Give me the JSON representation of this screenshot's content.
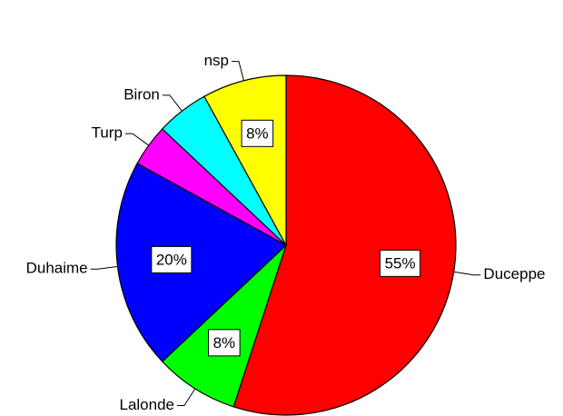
{
  "chart_data": {
    "type": "pie",
    "categories": [
      "Duceppe",
      "Lalonde",
      "Duhaime",
      "Turp",
      "Biron",
      "nsp"
    ],
    "values": [
      55,
      8,
      20,
      4,
      5,
      8
    ],
    "value_labels": [
      "55%",
      "8%",
      "20%",
      null,
      null,
      "8%"
    ],
    "colors": [
      "#ff0000",
      "#00ff00",
      "#0000ff",
      "#ff00ff",
      "#00ffff",
      "#ffff00"
    ]
  }
}
